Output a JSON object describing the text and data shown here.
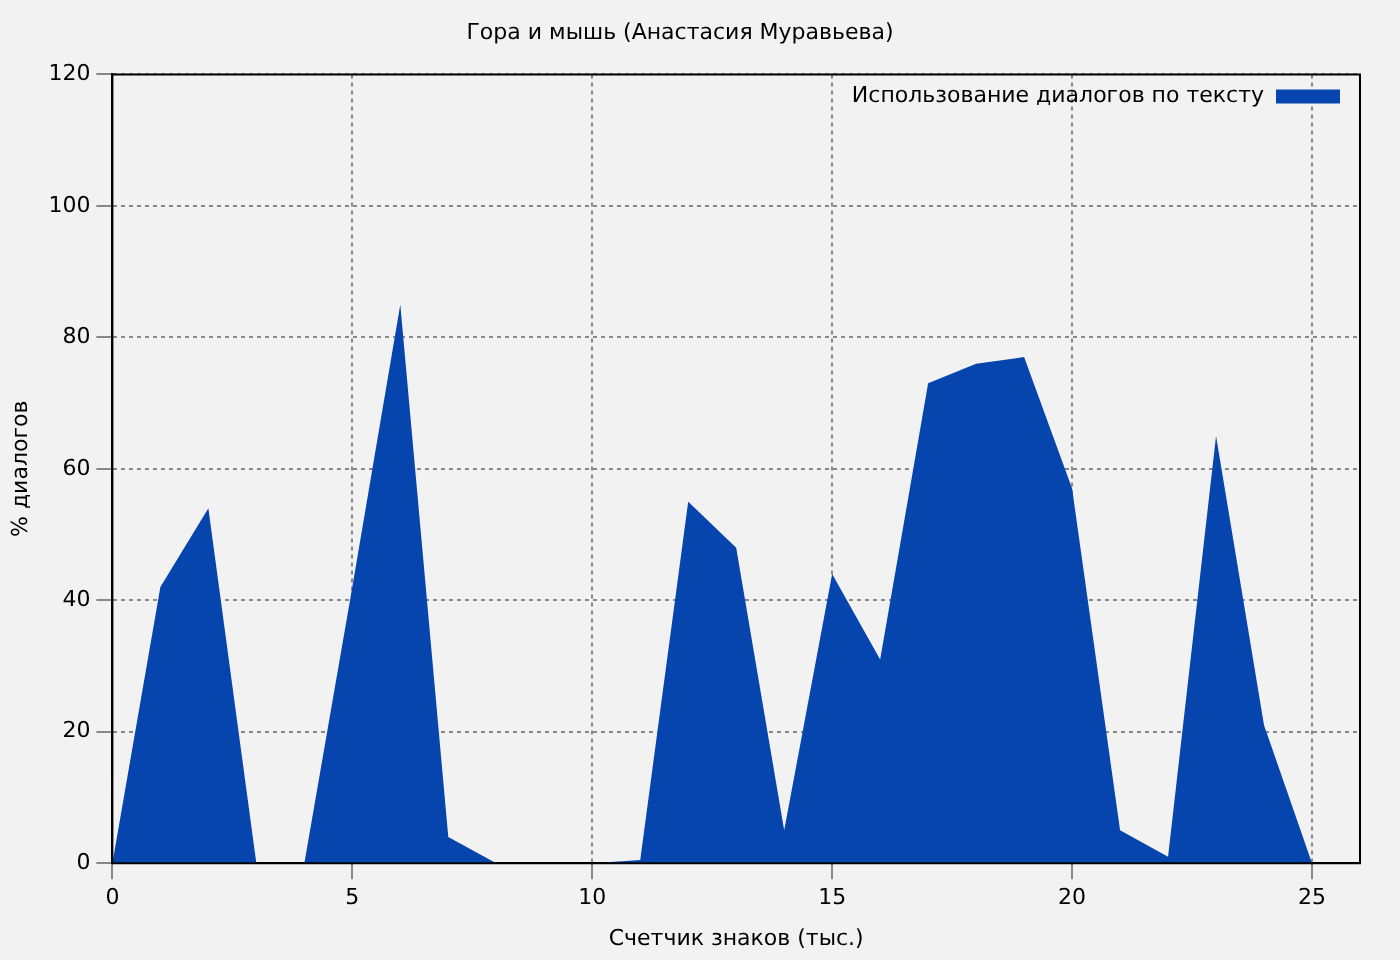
{
  "chart_data": {
    "type": "area",
    "title": "Гора и мышь (Анастасия Муравьева)",
    "xlabel": "Счетчик знаков (тыс.)",
    "ylabel": "% диалогов",
    "x": [
      0,
      1,
      2,
      3,
      4,
      5,
      6,
      7,
      8,
      9,
      10,
      11,
      12,
      13,
      14,
      15,
      16,
      17,
      18,
      19,
      20,
      21,
      22,
      23,
      24,
      25
    ],
    "series": [
      {
        "name": "Использование диалогов по тексту",
        "color": "#0645ad",
        "values": [
          0,
          42,
          54,
          0,
          0,
          42,
          85,
          4,
          0,
          0,
          0,
          0.5,
          55,
          48,
          5,
          44,
          31,
          73,
          76,
          77,
          57,
          5,
          1,
          65,
          21,
          0
        ]
      }
    ],
    "xlim": [
      0,
      26
    ],
    "xticks": [
      0,
      5,
      10,
      15,
      20,
      25
    ],
    "ylim": [
      0,
      120
    ],
    "yticks": [
      0,
      20,
      40,
      60,
      80,
      100,
      120
    ],
    "grid": true,
    "legend": "top right"
  }
}
